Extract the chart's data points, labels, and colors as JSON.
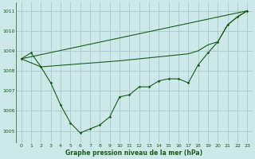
{
  "title": "Graphe pression niveau de la mer (hPa)",
  "bg_color": "#cce8e8",
  "grid_color": "#aacece",
  "line_color": "#1a5c1a",
  "xlim": [
    -0.5,
    23.5
  ],
  "ylim": [
    1004.4,
    1011.4
  ],
  "yticks": [
    1005,
    1006,
    1007,
    1008,
    1009,
    1010,
    1011
  ],
  "xticks": [
    0,
    1,
    2,
    3,
    4,
    5,
    6,
    7,
    8,
    9,
    10,
    11,
    12,
    13,
    14,
    15,
    16,
    17,
    18,
    19,
    20,
    21,
    22,
    23
  ],
  "series1_x": [
    0,
    1,
    2,
    3,
    4,
    5,
    6,
    7,
    8,
    9,
    10,
    11,
    12,
    13,
    14,
    15,
    16,
    17,
    18,
    19,
    20,
    21,
    22,
    23
  ],
  "series1_y": [
    1008.6,
    1008.9,
    1008.2,
    1007.4,
    1006.3,
    1005.4,
    1004.9,
    1005.1,
    1005.3,
    1005.7,
    1006.7,
    1006.8,
    1007.2,
    1007.2,
    1007.5,
    1007.6,
    1007.6,
    1007.4,
    1008.3,
    1008.9,
    1009.45,
    1010.3,
    1010.7,
    1011.0
  ],
  "series2_x": [
    0,
    23
  ],
  "series2_y": [
    1008.6,
    1011.0
  ],
  "series3_x": [
    0,
    2,
    10,
    11,
    12,
    13,
    14,
    15,
    16,
    17,
    18,
    19,
    20,
    21,
    22,
    23
  ],
  "series3_y": [
    1008.6,
    1008.2,
    1008.5,
    1008.55,
    1008.6,
    1008.65,
    1008.7,
    1008.75,
    1008.8,
    1008.85,
    1009.0,
    1009.3,
    1009.45,
    1010.3,
    1010.7,
    1011.0
  ]
}
